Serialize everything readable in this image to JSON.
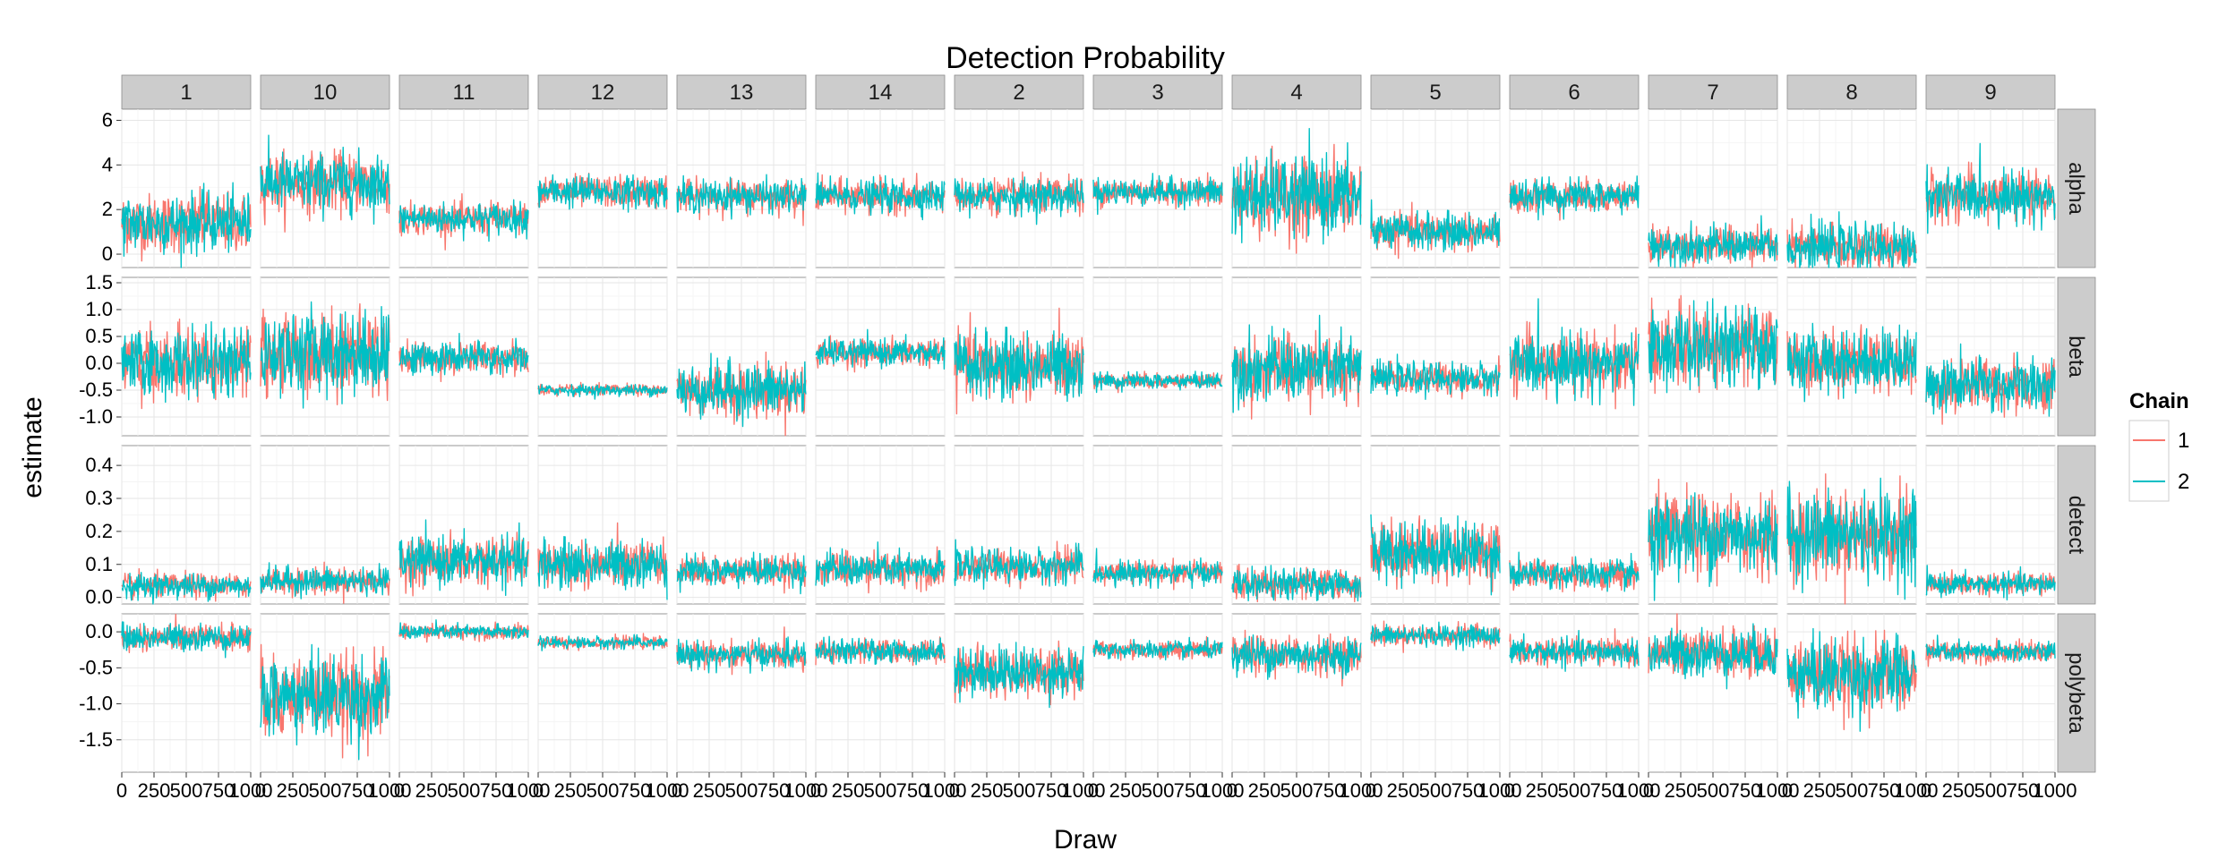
{
  "chart_data": {
    "type": "line",
    "title": "Detection Probability",
    "xlabel": "Draw",
    "ylabel": "estimate",
    "xlim": [
      0,
      1000
    ],
    "x_ticks": [
      0,
      250,
      500,
      750,
      1000
    ],
    "x_tick_labels": [
      "0",
      "250",
      "500",
      "750",
      "1000"
    ],
    "grid": true,
    "legend": {
      "title": "Chain",
      "position": "right",
      "entries": [
        "1",
        "2"
      ]
    },
    "series": [
      {
        "name": "1",
        "color": "#F8766D"
      },
      {
        "name": "2",
        "color": "#00BFC4"
      }
    ],
    "facet_columns": [
      "1",
      "10",
      "11",
      "12",
      "13",
      "14",
      "2",
      "3",
      "4",
      "5",
      "6",
      "7",
      "8",
      "9"
    ],
    "facet_rows": [
      {
        "name": "alpha",
        "ylim": [
          -0.6,
          6.5
        ],
        "y_ticks": [
          0,
          2,
          4,
          6
        ],
        "y_tick_labels": [
          "0",
          "2",
          "4",
          "6"
        ],
        "center": [
          1.4,
          3.2,
          1.6,
          2.8,
          2.6,
          2.6,
          2.6,
          2.8,
          2.6,
          1.0,
          2.6,
          0.4,
          0.3,
          2.6
        ],
        "spread": [
          0.65,
          0.65,
          0.35,
          0.35,
          0.35,
          0.35,
          0.38,
          0.3,
          0.85,
          0.4,
          0.35,
          0.4,
          0.5,
          0.55
        ]
      },
      {
        "name": "beta",
        "ylim": [
          -1.35,
          1.6
        ],
        "y_ticks": [
          -1.0,
          -0.5,
          0.0,
          0.5,
          1.0,
          1.5
        ],
        "y_tick_labels": [
          "-1.0",
          "-0.5",
          "0.0",
          "0.5",
          "1.0",
          "1.5"
        ],
        "center": [
          0.0,
          0.2,
          0.1,
          -0.5,
          -0.5,
          0.2,
          -0.05,
          -0.33,
          -0.1,
          -0.28,
          0.0,
          0.3,
          0.05,
          -0.4
        ],
        "spread": [
          0.3,
          0.38,
          0.15,
          0.05,
          0.25,
          0.12,
          0.3,
          0.07,
          0.3,
          0.14,
          0.28,
          0.35,
          0.28,
          0.25
        ]
      },
      {
        "name": "detect",
        "ylim": [
          -0.02,
          0.46
        ],
        "y_ticks": [
          0.0,
          0.1,
          0.2,
          0.3,
          0.4
        ],
        "y_tick_labels": [
          "0.0",
          "0.1",
          "0.2",
          "0.3",
          "0.4"
        ],
        "center": [
          0.035,
          0.05,
          0.11,
          0.1,
          0.08,
          0.085,
          0.095,
          0.075,
          0.04,
          0.14,
          0.07,
          0.19,
          0.19,
          0.04
        ],
        "spread": [
          0.018,
          0.02,
          0.035,
          0.035,
          0.022,
          0.025,
          0.025,
          0.017,
          0.022,
          0.045,
          0.022,
          0.06,
          0.065,
          0.016
        ]
      },
      {
        "name": "polybeta",
        "ylim": [
          -1.95,
          0.25
        ],
        "y_ticks": [
          -1.5,
          -1.0,
          -0.5,
          0.0
        ],
        "y_tick_labels": [
          "-1.5",
          "-1.0",
          "-0.5",
          "0.0"
        ],
        "center": [
          -0.08,
          -0.9,
          0.0,
          -0.15,
          -0.32,
          -0.27,
          -0.55,
          -0.25,
          -0.32,
          -0.05,
          -0.28,
          -0.3,
          -0.6,
          -0.28
        ],
        "spread": [
          0.09,
          0.28,
          0.05,
          0.04,
          0.09,
          0.08,
          0.17,
          0.06,
          0.13,
          0.07,
          0.09,
          0.16,
          0.25,
          0.07
        ]
      }
    ]
  }
}
